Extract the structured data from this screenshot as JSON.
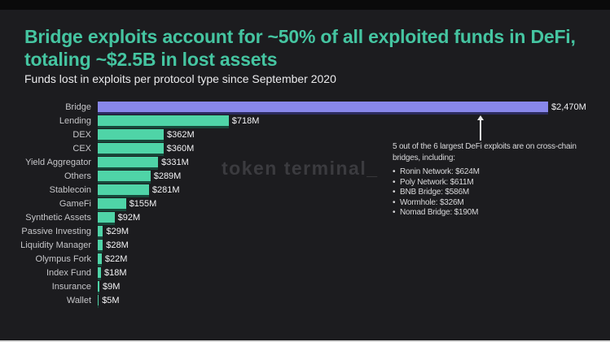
{
  "title_line1": "Bridge exploits account for ~50% of all exploited funds in DeFi,",
  "title_line2": "totaling ~$2.5B in lost assets",
  "subtitle": "Funds lost in exploits per protocol type since September 2020",
  "watermark": "token terminal_",
  "annotation": {
    "heading": "5 out of the 6 largest DeFi exploits are on cross-chain bridges, including:",
    "items": [
      "Ronin Network: $624M",
      "Poly Network: $611M",
      "BNB Bridge: $586M",
      "Wormhole: $326M",
      "Nomad Bridge: $190M"
    ]
  },
  "colors": {
    "background": "#1c1c1f",
    "title": "#45c5a1",
    "bar_default": "#4fd4a7",
    "bar_highlight": "#8887ea",
    "bar_default_shadow": "#17483a",
    "bar_highlight_shadow": "#2b2b5e",
    "watermark": "#3b3b3f"
  },
  "chart_data": {
    "type": "bar",
    "orientation": "horizontal",
    "title": "Bridge exploits account for ~50% of all exploited funds in DeFi, totaling ~$2.5B in lost assets",
    "subtitle": "Funds lost in exploits per protocol type since September 2020",
    "unit": "USD millions",
    "categories": [
      "Bridge",
      "Lending",
      "DEX",
      "CEX",
      "Yield Aggregator",
      "Others",
      "Stablecoin",
      "GameFi",
      "Synthetic Assets",
      "Passive Investing",
      "Liquidity Manager",
      "Olympus Fork",
      "Index Fund",
      "Insurance",
      "Wallet"
    ],
    "values": [
      2470,
      718,
      362,
      360,
      331,
      289,
      281,
      155,
      92,
      29,
      28,
      22,
      18,
      9,
      5
    ],
    "value_labels": [
      "$2,470M",
      "$718M",
      "$362M",
      "$360M",
      "$331M",
      "$289M",
      "$281M",
      "$155M",
      "$92M",
      "$29M",
      "$28M",
      "$22M",
      "$18M",
      "$9M",
      "$5M"
    ],
    "xlim": [
      0,
      2470
    ],
    "highlight_index": 0,
    "legend": false,
    "grid": false
  }
}
